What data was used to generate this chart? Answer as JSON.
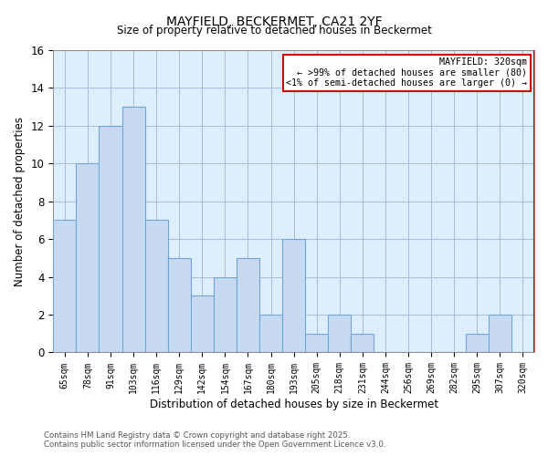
{
  "title": "MAYFIELD, BECKERMET, CA21 2YF",
  "subtitle": "Size of property relative to detached houses in Beckermet",
  "xlabel": "Distribution of detached houses by size in Beckermet",
  "ylabel": "Number of detached properties",
  "bar_color": "#c6d9f0",
  "bar_edge_color": "#6ea6d8",
  "plot_bg_color": "#ddeeff",
  "categories": [
    "65sqm",
    "78sqm",
    "91sqm",
    "103sqm",
    "116sqm",
    "129sqm",
    "142sqm",
    "154sqm",
    "167sqm",
    "180sqm",
    "193sqm",
    "205sqm",
    "218sqm",
    "231sqm",
    "244sqm",
    "256sqm",
    "269sqm",
    "282sqm",
    "295sqm",
    "307sqm",
    "320sqm"
  ],
  "values": [
    7,
    10,
    12,
    13,
    7,
    5,
    3,
    4,
    5,
    2,
    6,
    1,
    2,
    1,
    0,
    0,
    0,
    0,
    1,
    2,
    0
  ],
  "ylim": [
    0,
    16
  ],
  "yticks": [
    0,
    2,
    4,
    6,
    8,
    10,
    12,
    14,
    16
  ],
  "annotation_title": "MAYFIELD: 320sqm",
  "annotation_line1": "← >99% of detached houses are smaller (80)",
  "annotation_line2": "<1% of semi-detached houses are larger (0) →",
  "annotation_box_color": "#ffffff",
  "annotation_box_edge": "#cc0000",
  "grid_color": "#aabbdd",
  "background_color": "#ffffff",
  "footer1": "Contains HM Land Registry data © Crown copyright and database right 2025.",
  "footer2": "Contains public sector information licensed under the Open Government Licence v3.0."
}
